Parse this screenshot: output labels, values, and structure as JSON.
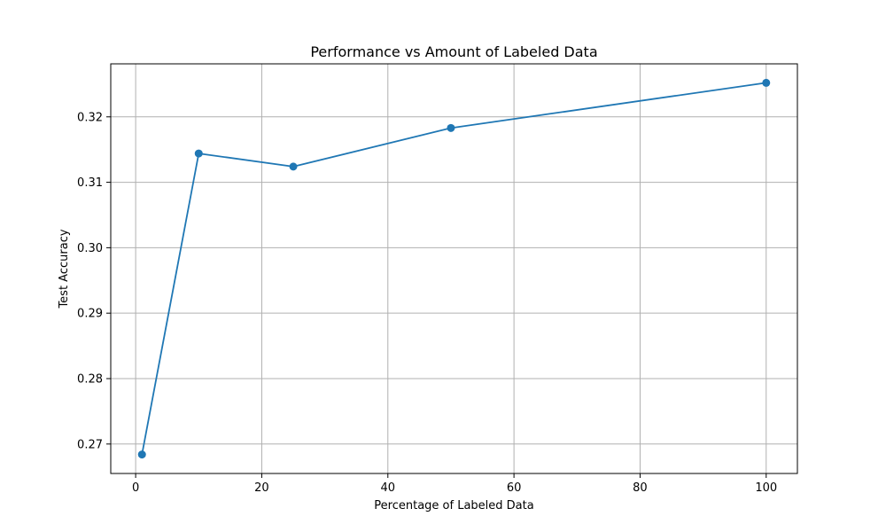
{
  "chart_data": {
    "type": "line",
    "title": "Performance vs Amount of Labeled Data",
    "xlabel": "Percentage of Labeled Data",
    "ylabel": "Test Accuracy",
    "xlim": [
      -3.95,
      104.95
    ],
    "ylim": [
      0.2655,
      0.3281
    ],
    "xticks": [
      0,
      20,
      40,
      60,
      80,
      100
    ],
    "yticks": [
      0.27,
      0.28,
      0.29,
      0.3,
      0.31,
      0.32
    ],
    "xtick_labels": [
      "0",
      "20",
      "40",
      "60",
      "80",
      "100"
    ],
    "ytick_labels": [
      "0.27",
      "0.28",
      "0.29",
      "0.30",
      "0.31",
      "0.32"
    ],
    "grid": true,
    "series": [
      {
        "x": [
          1,
          10,
          25,
          50,
          100
        ],
        "y": [
          0.2684,
          0.3144,
          0.3124,
          0.3183,
          0.3252
        ],
        "color": "#1f77b4",
        "marker": "circle"
      }
    ]
  }
}
